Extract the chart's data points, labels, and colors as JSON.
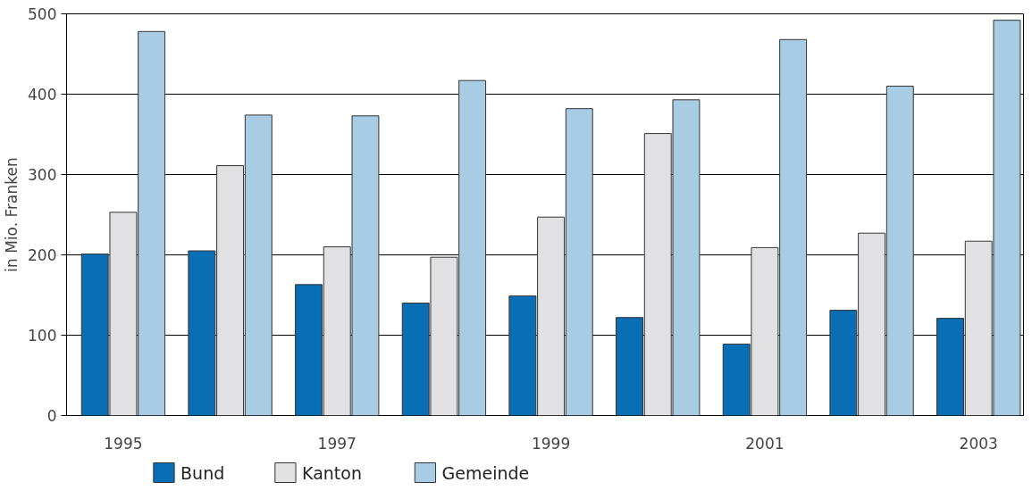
{
  "chart_data": {
    "type": "bar",
    "ylabel": "in Mio. Franken",
    "categories": [
      "1995",
      null,
      "1997",
      null,
      "1999",
      null,
      "2001",
      null,
      "2003"
    ],
    "series": [
      {
        "name": "Bund",
        "color": "#0a6eb4",
        "values": [
          201,
          205,
          163,
          140,
          149,
          122,
          89,
          131,
          121
        ]
      },
      {
        "name": "Kanton",
        "color": "#e1e1e3",
        "values": [
          253,
          311,
          210,
          197,
          247,
          351,
          209,
          227,
          217
        ]
      },
      {
        "name": "Gemeinde",
        "color": "#a8cce4",
        "values": [
          478,
          374,
          373,
          417,
          382,
          393,
          468,
          410,
          492
        ]
      }
    ],
    "ylim": [
      0,
      500
    ],
    "yticks": [
      0,
      100,
      200,
      300,
      400,
      500
    ],
    "grid": "y",
    "legend": "bottom left"
  }
}
